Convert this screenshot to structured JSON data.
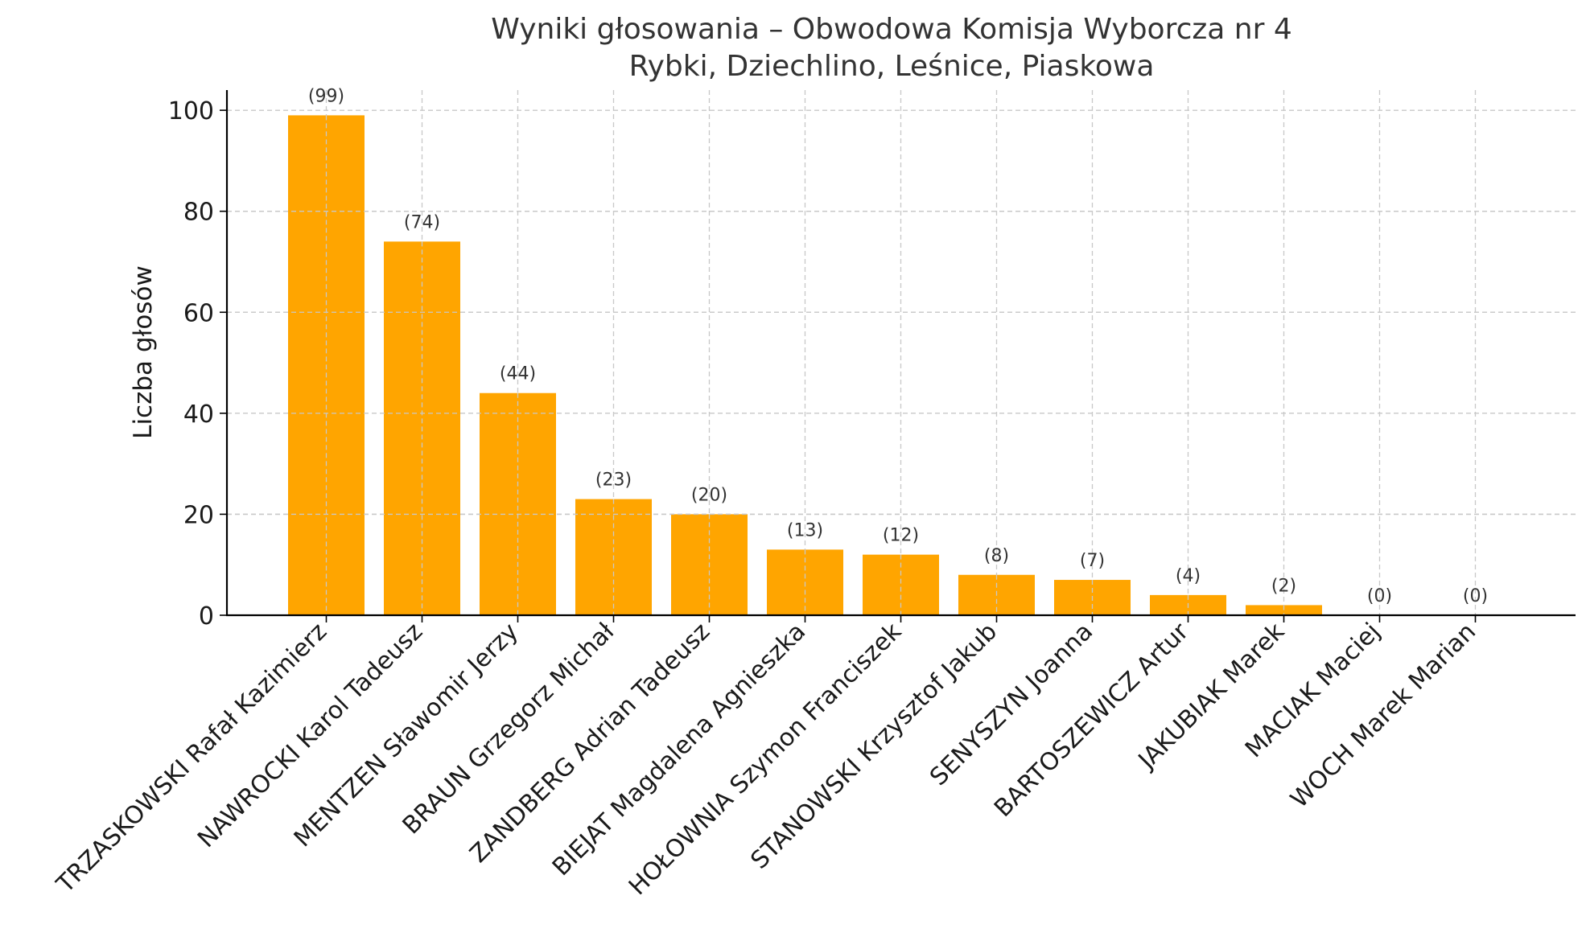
{
  "chart_data": {
    "type": "bar",
    "title": "Wyniki głosowania – Obwodowa Komisja Wyborcza nr 4",
    "subtitle": "Rybki, Dziechlino, Leśnice, Piaskowa",
    "xlabel": "",
    "ylabel": "Liczba głosów",
    "ylim": [
      0,
      104
    ],
    "yticks": [
      0,
      20,
      40,
      60,
      80,
      100
    ],
    "grid": true,
    "bar_color": "#FFA500",
    "categories": [
      "TRZASKOWSKI Rafał Kazimierz",
      "NAWROCKI Karol Tadeusz",
      "MENTZEN Sławomir Jerzy",
      "BRAUN Grzegorz Michał",
      "ZANDBERG Adrian Tadeusz",
      "BIEJAT Magdalena Agnieszka",
      "HOŁOWNIA Szymon Franciszek",
      "STANOWSKI Krzysztof Jakub",
      "SENYSZYN Joanna",
      "BARTOSZEWICZ Artur",
      "JAKUBIAK Marek",
      "MACIAK Maciej",
      "WOCH Marek Marian"
    ],
    "values": [
      99,
      74,
      44,
      23,
      20,
      13,
      12,
      8,
      7,
      4,
      2,
      0,
      0
    ],
    "data_labels": [
      "(99)",
      "(74)",
      "(44)",
      "(23)",
      "(20)",
      "(13)",
      "(12)",
      "(8)",
      "(7)",
      "(4)",
      "(2)",
      "(0)",
      "(0)"
    ]
  }
}
